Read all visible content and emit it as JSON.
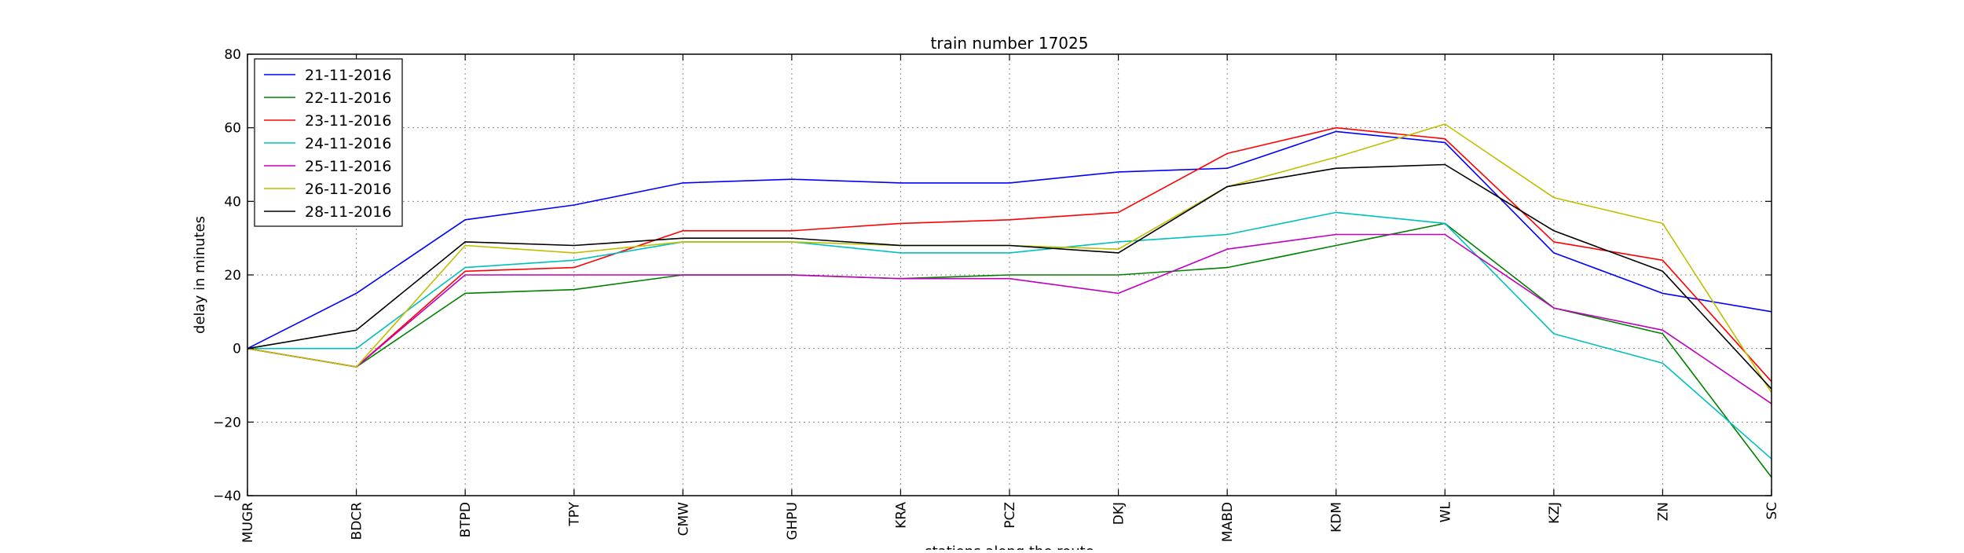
{
  "chart_data": {
    "type": "line",
    "title": "train number 17025",
    "xlabel": "stations along the route",
    "ylabel": "delay in minutes",
    "ylim": [
      -40,
      80
    ],
    "yticks": [
      -40,
      -20,
      0,
      20,
      40,
      60,
      80
    ],
    "ytick_labels": [
      "−40",
      "−20",
      "0",
      "20",
      "40",
      "60",
      "80"
    ],
    "grid": true,
    "legend_position": "top-left",
    "categories": [
      "MUGR",
      "BDCR",
      "BTPD",
      "TPY",
      "CMW",
      "GHPU",
      "KRA",
      "PCZ",
      "DKJ",
      "MABD",
      "KDM",
      "WL",
      "KZJ",
      "ZN",
      "SC"
    ],
    "series": [
      {
        "name": "21-11-2016",
        "color": "#0000ff",
        "values": [
          0,
          15,
          35,
          39,
          45,
          46,
          45,
          45,
          48,
          49,
          59,
          56,
          26,
          15,
          10
        ]
      },
      {
        "name": "22-11-2016",
        "color": "#008000",
        "values": [
          0,
          -5,
          15,
          16,
          20,
          20,
          19,
          20,
          20,
          22,
          28,
          34,
          11,
          4,
          -35
        ]
      },
      {
        "name": "23-11-2016",
        "color": "#ff0000",
        "values": [
          0,
          -5,
          21,
          22,
          32,
          32,
          34,
          35,
          37,
          53,
          60,
          57,
          29,
          24,
          -9
        ]
      },
      {
        "name": "24-11-2016",
        "color": "#00bfbf",
        "values": [
          0,
          0,
          22,
          24,
          29,
          29,
          26,
          26,
          29,
          31,
          37,
          34,
          4,
          -4,
          -30
        ]
      },
      {
        "name": "25-11-2016",
        "color": "#bf00bf",
        "values": [
          0,
          -5,
          20,
          20,
          20,
          20,
          19,
          19,
          15,
          27,
          31,
          31,
          11,
          5,
          -15
        ]
      },
      {
        "name": "26-11-2016",
        "color": "#bfbf00",
        "values": [
          0,
          -5,
          28,
          26,
          29,
          29,
          28,
          28,
          27,
          44,
          52,
          61,
          41,
          34,
          -12
        ]
      },
      {
        "name": "28-11-2016",
        "color": "#000000",
        "values": [
          0,
          5,
          29,
          28,
          30,
          30,
          28,
          28,
          26,
          44,
          49,
          50,
          32,
          21,
          -11
        ]
      }
    ]
  }
}
